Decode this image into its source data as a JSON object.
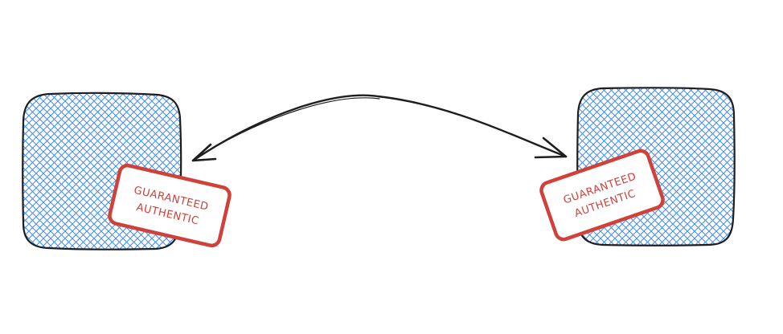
{
  "canvas": {
    "background": "#ffffff"
  },
  "colors": {
    "node_fill_hatch": "#4a90e2",
    "node_stroke": "#1e1e1e",
    "stamp_stroke": "#d0413a",
    "stamp_text": "#d0413a",
    "stamp_fill": "#ffffff",
    "arrow": "#1e1e1e"
  },
  "nodes": [
    {
      "id": "left-box",
      "fill": "blue-hatch",
      "stamp": {
        "line1": "GUARANTEED",
        "line2": "AUTHENTIC"
      }
    },
    {
      "id": "right-box",
      "fill": "blue-hatch",
      "stamp": {
        "line1": "GUARANTEED",
        "line2": "AUTHENTIC"
      }
    }
  ],
  "connector": {
    "type": "curved-arrow",
    "arrowheads": "both",
    "from": "left-box",
    "to": "right-box"
  }
}
